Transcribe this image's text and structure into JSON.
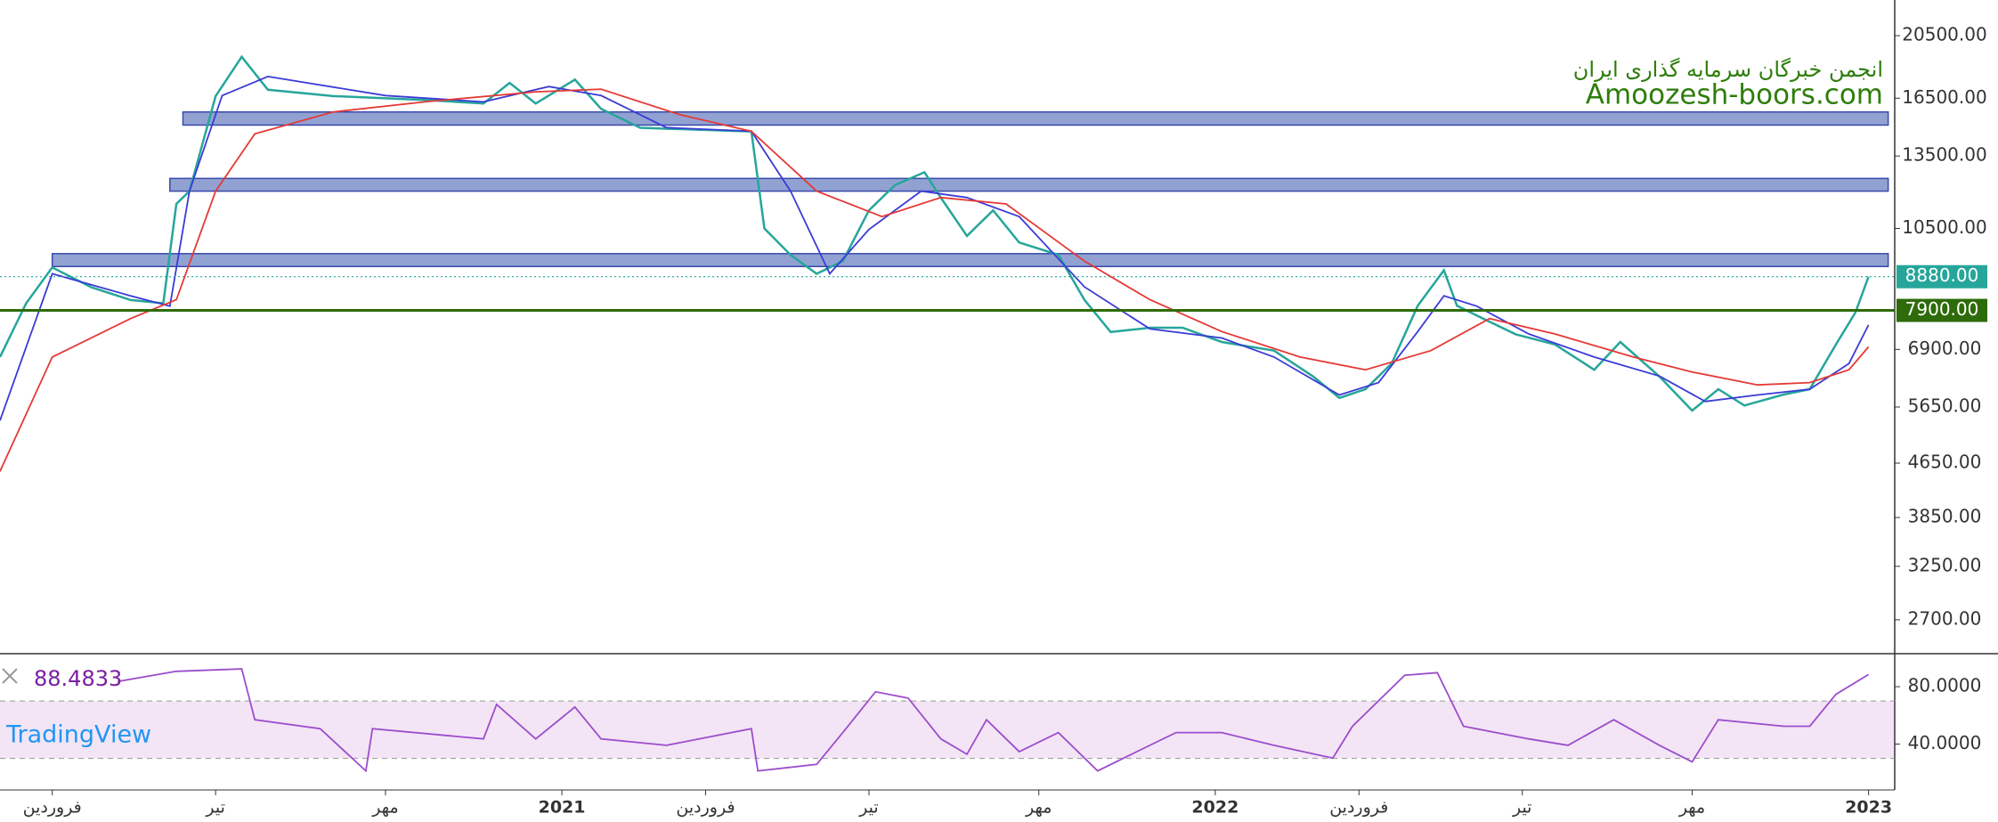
{
  "chart_data": [
    {
      "type": "line",
      "ylog": true,
      "ylim": [
        2400,
        23200
      ],
      "xlim": [
        2020.14,
        2023.04
      ],
      "yticks": [
        {
          "value": 20500,
          "label": "20500.00"
        },
        {
          "value": 16500,
          "label": "16500.00"
        },
        {
          "value": 13500,
          "label": "13500.00"
        },
        {
          "value": 10500,
          "label": "10500.00"
        },
        {
          "value": 6900,
          "label": "6900.00"
        },
        {
          "value": 5650,
          "label": "5650.00"
        },
        {
          "value": 4650,
          "label": "4650.00"
        },
        {
          "value": 3850,
          "label": "3850.00"
        },
        {
          "value": 3250,
          "label": "3250.00"
        },
        {
          "value": 2700,
          "label": "2700.00"
        }
      ],
      "series": [
        {
          "color": "#26a69a",
          "x": [
            2020.14,
            2020.18,
            2020.22,
            2020.28,
            2020.34,
            2020.39,
            2020.41,
            2020.43,
            2020.47,
            2020.51,
            2020.55,
            2020.65,
            2020.79,
            2020.88,
            2020.92,
            2020.96,
            2021.02,
            2021.06,
            2021.12,
            2021.29,
            2021.31,
            2021.35,
            2021.39,
            2021.43,
            2021.47,
            2021.51,
            2021.555,
            2021.58,
            2021.62,
            2021.66,
            2021.7,
            2021.76,
            2021.8,
            2021.84,
            2021.9,
            2021.95,
            2022.01,
            2022.09,
            2022.15,
            2022.19,
            2022.23,
            2022.27,
            2022.31,
            2022.35,
            2022.37,
            2022.41,
            2022.46,
            2022.52,
            2022.58,
            2022.62,
            2022.68,
            2022.73,
            2022.77,
            2022.81,
            2022.87,
            2022.91,
            2022.95,
            2022.98,
            2023.0
          ],
          "values": [
            6720,
            8100,
            9170,
            8560,
            8190,
            8100,
            11430,
            11950,
            16620,
            19050,
            16990,
            16620,
            16400,
            16200,
            17400,
            16200,
            17600,
            15900,
            14890,
            14700,
            10500,
            9580,
            8970,
            9370,
            11180,
            12210,
            12760,
            11680,
            10230,
            11180,
            10000,
            9580,
            8190,
            7330,
            7440,
            7440,
            7080,
            6870,
            6280,
            5830,
            6010,
            6570,
            8030,
            9080,
            8030,
            7680,
            7270,
            7020,
            6430,
            7080,
            6280,
            5580,
            6010,
            5680,
            5900,
            6010,
            7020,
            7850,
            8880
          ]
        },
        {
          "color": "#3b3bd6",
          "x": [
            2020.14,
            2020.22,
            2020.34,
            2020.4,
            2020.43,
            2020.48,
            2020.55,
            2020.73,
            2020.88,
            2020.98,
            2021.06,
            2021.16,
            2021.29,
            2021.35,
            2021.41,
            2021.47,
            2021.55,
            2021.62,
            2021.7,
            2021.8,
            2021.9,
            2022.01,
            2022.09,
            2022.19,
            2022.25,
            2022.31,
            2022.35,
            2022.4,
            2022.48,
            2022.58,
            2022.68,
            2022.75,
            2022.83,
            2022.91,
            2022.97,
            2023.0
          ],
          "values": [
            5390,
            8970,
            8310,
            8020,
            11950,
            16650,
            17790,
            16650,
            16290,
            17180,
            16650,
            14900,
            14710,
            11950,
            8970,
            10460,
            11950,
            11690,
            10940,
            8570,
            7410,
            7180,
            6720,
            5890,
            6150,
            7340,
            8310,
            8020,
            7280,
            6720,
            6290,
            5760,
            5890,
            6010,
            6570,
            7510
          ]
        },
        {
          "color": "#e53935",
          "x": [
            2020.14,
            2020.22,
            2020.34,
            2020.41,
            2020.47,
            2020.53,
            2020.65,
            2020.79,
            2020.96,
            2021.06,
            2021.18,
            2021.29,
            2021.39,
            2021.49,
            2021.58,
            2021.68,
            2021.8,
            2021.9,
            2022.01,
            2022.13,
            2022.23,
            2022.33,
            2022.42,
            2022.52,
            2022.64,
            2022.73,
            2022.83,
            2022.91,
            2022.97,
            2023.0
          ],
          "values": [
            4520,
            6720,
            7680,
            8200,
            11950,
            14580,
            15730,
            16290,
            16870,
            17020,
            15590,
            14710,
            11950,
            10940,
            11690,
            11430,
            9370,
            8200,
            7340,
            6720,
            6430,
            6870,
            7680,
            7280,
            6720,
            6380,
            6100,
            6150,
            6430,
            6960
          ]
        }
      ],
      "zones": [
        {
          "from": 15030,
          "to": 15730,
          "x_from": 2020.42,
          "x_to": 2023.03
        },
        {
          "from": 11950,
          "to": 12490,
          "x_from": 2020.4,
          "x_to": 2023.03
        },
        {
          "from": 9200,
          "to": 9620,
          "x_from": 2020.22,
          "x_to": 2023.03
        }
      ],
      "zone_color": "#8b9dd0",
      "level": {
        "value": 7900,
        "label": "7900.00",
        "color": "#2e6b0a"
      },
      "last_price": {
        "value": 8880,
        "label": "8880.00",
        "color": "#26a69a"
      },
      "annotations": [
        "انجمن خبرگان سرمایه گذاری ایران",
        "Amoozesh-boors.com"
      ]
    },
    {
      "type": "line",
      "ylim": [
        8,
        103
      ],
      "xlim": [
        2020.14,
        2023.04
      ],
      "yticks": [
        {
          "value": 80,
          "label": "80.0000"
        },
        {
          "value": 40,
          "label": "40.0000"
        }
      ],
      "bands": [
        30,
        70
      ],
      "series": [
        {
          "color": "#9c4dcc",
          "x": [
            2020.32,
            2020.41,
            2020.51,
            2020.53,
            2020.63,
            2020.7,
            2020.71,
            2020.88,
            2020.9,
            2020.96,
            2021.02,
            2021.06,
            2021.16,
            2021.29,
            2021.3,
            2021.39,
            2021.43,
            2021.48,
            2021.53,
            2021.58,
            2021.62,
            2021.65,
            2021.7,
            2021.76,
            2021.82,
            2021.88,
            2021.94,
            2022.01,
            2022.09,
            2022.18,
            2022.21,
            2022.29,
            2022.34,
            2022.38,
            2022.48,
            2022.54,
            2022.61,
            2022.68,
            2022.73,
            2022.77,
            2022.87,
            2022.91,
            2022.95,
            2023.0
          ],
          "values": [
            83.6,
            90.7,
            92.4,
            56.9,
            50.7,
            21.3,
            50.7,
            43.6,
            67.6,
            43.6,
            65.8,
            43.6,
            39.1,
            50.7,
            21.3,
            25.8,
            48,
            76.4,
            72,
            43.6,
            32.9,
            56.9,
            34.7,
            48,
            21.3,
            34.7,
            48,
            48,
            39.1,
            30.2,
            52.4,
            88,
            89.8,
            52.4,
            43.6,
            39.1,
            56.9,
            39.1,
            27.6,
            56.9,
            52.4,
            52.4,
            74.7,
            88.4833
          ]
        }
      ],
      "xticks": [
        {
          "value": 2020.22,
          "label": "فروردین"
        },
        {
          "value": 2020.47,
          "label": "تیر"
        },
        {
          "value": 2020.73,
          "label": "مهر"
        },
        2021,
        {
          "value": 2021.22,
          "label": "فروردین"
        },
        {
          "value": 2021.47,
          "label": "تیر"
        },
        {
          "value": 2021.73,
          "label": "مهر"
        },
        2022,
        {
          "value": 2022.22,
          "label": "فروردین"
        },
        {
          "value": 2022.47,
          "label": "تیر"
        },
        {
          "value": 2022.73,
          "label": "مهر"
        },
        2023
      ]
    }
  ],
  "watermark": "TradingView"
}
